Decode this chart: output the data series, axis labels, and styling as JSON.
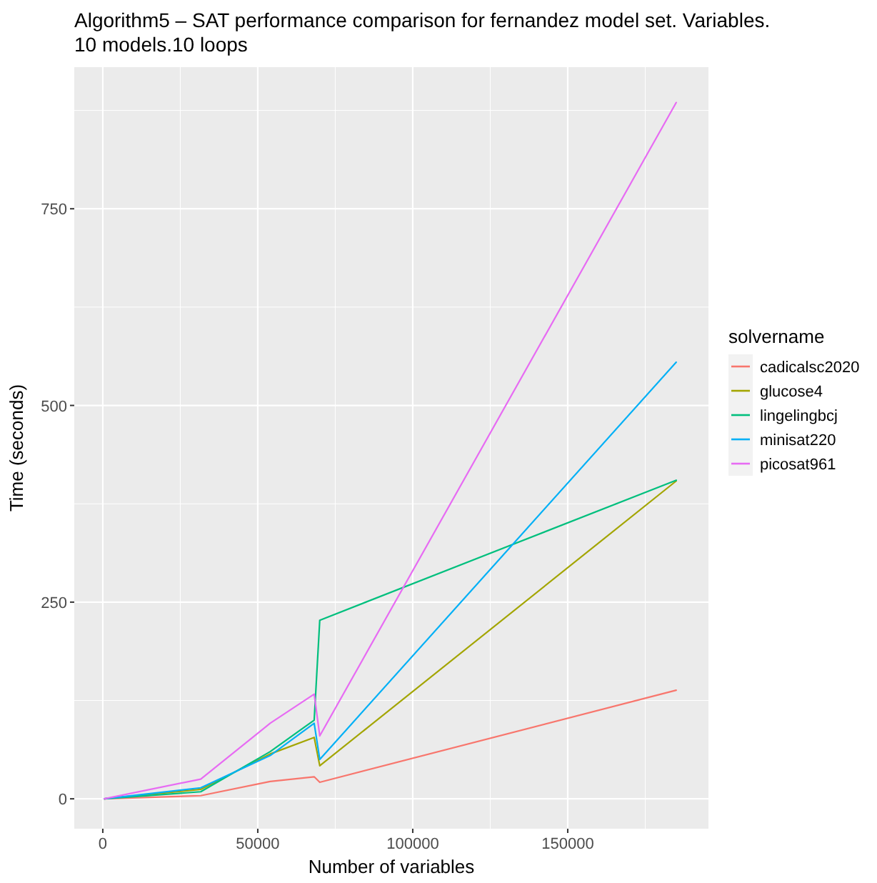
{
  "chart_data": {
    "type": "line",
    "title": "Algorithm5 – SAT performance comparison for fernandez model set. Variables.\n10 models.10 loops",
    "xlabel": "Number of variables",
    "ylabel": "Time (seconds)",
    "legend_title": "solvername",
    "legend": "right",
    "grid": true,
    "x": [
      500,
      31600,
      54000,
      68200,
      70000,
      185000
    ],
    "xlim": [
      -9200,
      195400
    ],
    "xticks": [
      0,
      50000,
      100000,
      150000
    ],
    "ylim": [
      -38,
      930
    ],
    "yticks": [
      0,
      250,
      500,
      750
    ],
    "series": [
      {
        "name": "cadicalsc2020",
        "color": "#f8766d",
        "values": [
          0,
          4,
          22,
          28,
          21,
          138
        ]
      },
      {
        "name": "glucose4",
        "color": "#a3a500",
        "values": [
          0,
          12,
          57,
          78,
          42,
          404
        ]
      },
      {
        "name": "lingelingbcj",
        "color": "#00bf7d",
        "values": [
          0,
          9,
          60,
          100,
          227,
          405
        ]
      },
      {
        "name": "minisat220",
        "color": "#00b0f6",
        "values": [
          0,
          14,
          55,
          96,
          50,
          555
        ]
      },
      {
        "name": "picosat961",
        "color": "#e76bf3",
        "values": [
          0,
          25,
          96,
          133,
          80,
          885
        ]
      }
    ]
  }
}
